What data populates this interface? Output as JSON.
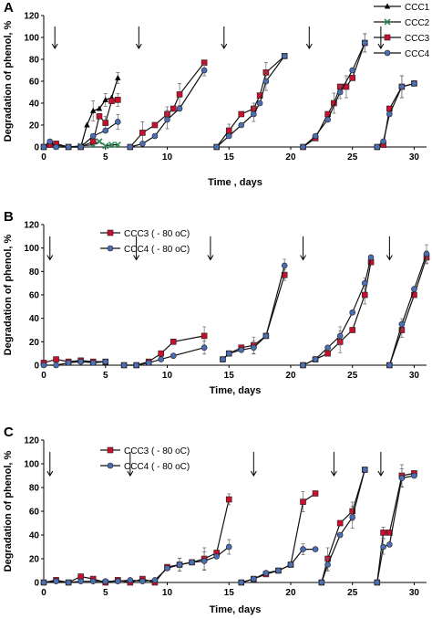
{
  "chart_data": [
    {
      "panel_label": "A",
      "type": "line",
      "xlabel": "Time , days",
      "ylabel": "Degradation of phenol, %",
      "xlim": [
        0,
        31
      ],
      "ylim": [
        0,
        120
      ],
      "x_ticks": [
        "0",
        "5",
        "10",
        "15",
        "20",
        "25",
        "30"
      ],
      "y_ticks": [
        "0",
        "20",
        "40",
        "60",
        "80",
        "100",
        "120"
      ],
      "legend_position": "top-right",
      "arrows_x": [
        0.9,
        7.7,
        14.6,
        21.5,
        27.3
      ],
      "series": [
        {
          "name": "CCC1",
          "color": "#000000",
          "marker": "triangle",
          "segments": [
            {
              "x": [
                0,
                1,
                2,
                3,
                3.5,
                4,
                4.5,
                5,
                5.5,
                6
              ],
              "y": [
                0,
                0,
                0,
                0,
                20,
                33,
                35,
                43,
                45,
                63
              ]
            }
          ]
        },
        {
          "name": "CCC2",
          "color": "#2e8b57",
          "marker": "x",
          "segments": [
            {
              "x": [
                0,
                1,
                2,
                3,
                4,
                4.5,
                5,
                5.5,
                6
              ],
              "y": [
                0,
                2,
                0,
                1,
                2,
                5,
                1,
                2,
                2
              ]
            }
          ]
        },
        {
          "name": "CCC3",
          "color": "#c8102e",
          "marker": "square",
          "segments": [
            {
              "x": [
                0,
                0.5,
                1,
                2,
                3,
                4,
                4.5,
                5,
                5.5,
                6
              ],
              "y": [
                0,
                2,
                3,
                0,
                0,
                5,
                28,
                22,
                42,
                43
              ]
            },
            {
              "x": [
                7,
                8,
                9,
                10,
                10.5,
                11,
                13
              ],
              "y": [
                0,
                13,
                20,
                30,
                35,
                48,
                77
              ]
            },
            {
              "x": [
                14,
                15,
                16,
                17,
                17.5,
                18,
                19.5
              ],
              "y": [
                0,
                15,
                30,
                35,
                47,
                68,
                83
              ]
            },
            {
              "x": [
                21,
                22,
                23,
                23.5,
                24,
                24.5,
                25,
                26
              ],
              "y": [
                0,
                8,
                30,
                40,
                55,
                55,
                63,
                95
              ]
            },
            {
              "x": [
                27,
                27.5,
                28,
                29,
                30
              ],
              "y": [
                0,
                2,
                35,
                55,
                58
              ]
            }
          ]
        },
        {
          "name": "CCC4",
          "color": "#4a6fb5",
          "marker": "circle",
          "segments": [
            {
              "x": [
                0,
                0.5,
                1,
                2,
                3,
                4,
                5,
                6
              ],
              "y": [
                0,
                5,
                0,
                0,
                0,
                10,
                15,
                23
              ]
            },
            {
              "x": [
                7,
                8,
                9,
                10,
                11,
                13
              ],
              "y": [
                0,
                3,
                10,
                25,
                35,
                70
              ]
            },
            {
              "x": [
                14,
                15,
                16,
                17,
                17.5,
                18,
                19.5
              ],
              "y": [
                0,
                10,
                20,
                30,
                40,
                60,
                83
              ]
            },
            {
              "x": [
                21,
                22,
                23,
                24,
                25,
                26
              ],
              "y": [
                0,
                10,
                25,
                50,
                70,
                95
              ]
            },
            {
              "x": [
                27,
                27.5,
                28,
                29,
                30
              ],
              "y": [
                0,
                5,
                30,
                55,
                58
              ]
            }
          ]
        }
      ]
    },
    {
      "panel_label": "B",
      "type": "line",
      "xlabel": "Time, days",
      "ylabel": "Degradation of phenol, %",
      "xlim": [
        0,
        31
      ],
      "ylim": [
        0,
        120
      ],
      "x_ticks": [
        "0",
        "5",
        "10",
        "15",
        "20",
        "25",
        "30"
      ],
      "y_ticks": [
        "0",
        "20",
        "40",
        "60",
        "80",
        "100",
        "120"
      ],
      "legend_position": "top-left",
      "arrows_x": [
        0.5,
        7.5,
        13.5,
        21,
        28
      ],
      "series": [
        {
          "name": "CCC3 ( - 80 oC)",
          "color": "#c8102e",
          "marker": "square",
          "segments": [
            {
              "x": [
                0,
                1,
                2,
                3,
                4,
                5
              ],
              "y": [
                2,
                5,
                3,
                4,
                3,
                3
              ]
            },
            {
              "x": [
                6.5,
                7.5,
                8.5,
                9.5,
                10.5,
                13
              ],
              "y": [
                0,
                0,
                3,
                10,
                20,
                25
              ]
            },
            {
              "x": [
                14.5,
                15,
                16,
                17,
                18,
                19.5
              ],
              "y": [
                5,
                10,
                15,
                17,
                25,
                77
              ]
            },
            {
              "x": [
                21,
                22,
                23,
                24,
                25,
                26,
                26.5
              ],
              "y": [
                0,
                5,
                10,
                20,
                30,
                60,
                88
              ]
            },
            {
              "x": [
                28,
                29,
                30,
                31
              ],
              "y": [
                0,
                30,
                60,
                92
              ]
            }
          ]
        },
        {
          "name": "CCC4 ( - 80 oC)",
          "color": "#4a6fb5",
          "marker": "circle",
          "segments": [
            {
              "x": [
                0,
                1,
                2,
                3,
                4,
                5
              ],
              "y": [
                0,
                0,
                2,
                3,
                2,
                3
              ]
            },
            {
              "x": [
                6.5,
                7.5,
                8.5,
                9.5,
                10.5,
                13
              ],
              "y": [
                0,
                0,
                2,
                5,
                8,
                15
              ]
            },
            {
              "x": [
                14.5,
                15,
                16,
                17,
                18,
                19.5
              ],
              "y": [
                5,
                10,
                13,
                15,
                25,
                85
              ]
            },
            {
              "x": [
                21,
                22,
                23,
                24,
                25,
                26,
                26.5
              ],
              "y": [
                0,
                5,
                15,
                25,
                45,
                70,
                92
              ]
            },
            {
              "x": [
                28,
                29,
                30,
                31
              ],
              "y": [
                0,
                35,
                65,
                95
              ]
            }
          ]
        }
      ]
    },
    {
      "panel_label": "C",
      "type": "line",
      "xlabel": "Time, days",
      "ylabel": "Degradation of phenol, %",
      "xlim": [
        0,
        31
      ],
      "ylim": [
        0,
        120
      ],
      "x_ticks": [
        "0",
        "5",
        "10",
        "15",
        "20",
        "25",
        "30"
      ],
      "y_ticks": [
        "0",
        "20",
        "40",
        "60",
        "80",
        "100",
        "120"
      ],
      "legend_position": "top-left",
      "arrows_x": [
        0.5,
        7,
        17,
        23.5,
        27.3
      ],
      "series": [
        {
          "name": "CCC3 ( - 80 oC)",
          "color": "#c8102e",
          "marker": "square",
          "segments": [
            {
              "x": [
                0,
                1,
                2,
                3,
                4,
                5,
                6,
                7,
                8,
                9,
                10,
                11,
                12,
                13,
                14,
                15
              ],
              "y": [
                0,
                2,
                0,
                5,
                3,
                0,
                2,
                0,
                3,
                0,
                13,
                15,
                17,
                20,
                25,
                70
              ]
            },
            {
              "x": [
                16,
                17,
                18,
                19,
                20,
                21,
                22
              ],
              "y": [
                0,
                3,
                7,
                10,
                15,
                68,
                75
              ]
            },
            {
              "x": [
                22.5,
                23,
                24,
                25,
                26
              ],
              "y": [
                0,
                20,
                50,
                60,
                95
              ]
            },
            {
              "x": [
                27,
                27.5,
                28,
                29,
                30
              ],
              "y": [
                0,
                42,
                42,
                90,
                92
              ]
            }
          ]
        },
        {
          "name": "CCC4 ( - 80 oC)",
          "color": "#4a6fb5",
          "marker": "circle",
          "segments": [
            {
              "x": [
                0,
                1,
                2,
                3,
                4,
                5,
                6,
                7,
                8,
                9,
                10,
                11,
                12,
                13,
                14,
                15
              ],
              "y": [
                0,
                1,
                0,
                1,
                1,
                1,
                1,
                2,
                1,
                2,
                12,
                15,
                17,
                18,
                22,
                30
              ]
            },
            {
              "x": [
                16,
                17,
                18,
                19,
                20,
                21,
                22
              ],
              "y": [
                0,
                3,
                8,
                10,
                15,
                28,
                28
              ]
            },
            {
              "x": [
                22.5,
                23,
                24,
                25,
                26
              ],
              "y": [
                0,
                15,
                40,
                55,
                95
              ]
            },
            {
              "x": [
                27,
                27.5,
                28,
                29,
                30
              ],
              "y": [
                0,
                30,
                32,
                88,
                90
              ]
            }
          ]
        }
      ]
    }
  ]
}
